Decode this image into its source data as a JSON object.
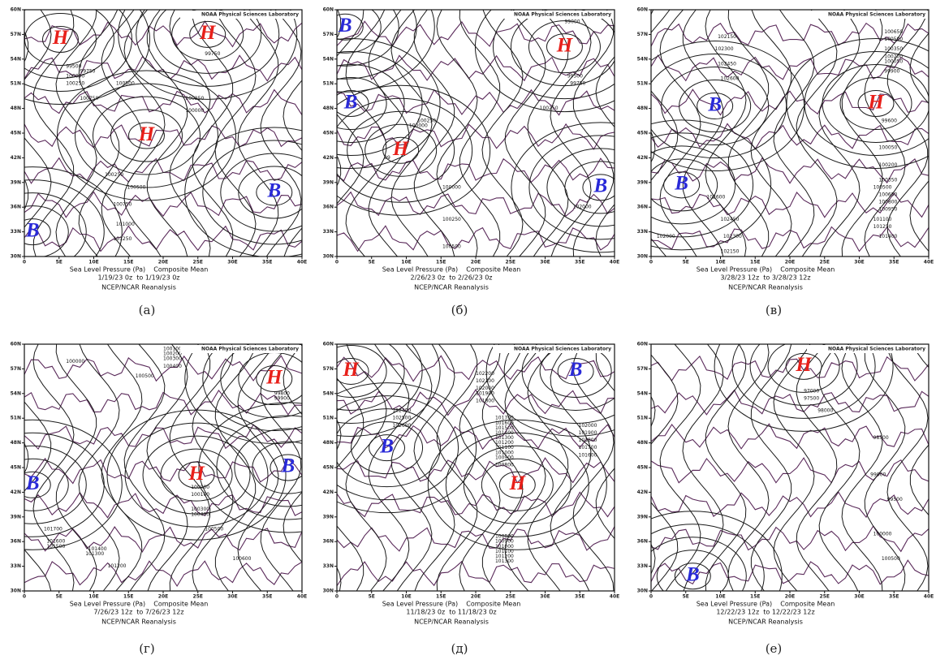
{
  "credit": "NOAA Physical Sciences Laboratory",
  "subtitle": "Sea Level Pressure (Pa)    Composite Mean",
  "source": "NCEP/NCAR Reanalysis",
  "lat_ticks": [
    "60N",
    "57N",
    "54N",
    "51N",
    "48N",
    "45N",
    "42N",
    "39N",
    "36N",
    "33N",
    "30N"
  ],
  "lon_ticks": [
    "0",
    "5E",
    "10E",
    "15E",
    "20E",
    "25E",
    "30E",
    "35E",
    "40E"
  ],
  "marker_colors": {
    "H": "#e8201a",
    "B": "#2a2ad8"
  },
  "panels": [
    {
      "caption": "(а)",
      "date": "1/19/23 0z  to 1/19/23 0z",
      "markers": [
        "H",
        "H",
        "H",
        "B",
        "B"
      ],
      "isobars": [
        "99500",
        "99750",
        "100000",
        "100250",
        "100750",
        "100500",
        "100250",
        "100000",
        "99750",
        "100250",
        "100500",
        "100750",
        "101000",
        "101250"
      ]
    },
    {
      "caption": "(б)",
      "date": "2/26/23 0z  to 2/26/23 0z",
      "markers": [
        "B",
        "H",
        "B",
        "H",
        "B"
      ],
      "isobars": [
        "99000",
        "99500",
        "99750",
        "100250",
        "100250",
        "100000",
        "99",
        "100000",
        "100250",
        "100500",
        "102000"
      ]
    },
    {
      "caption": "(в)",
      "date": "3/28/23 12z  to 3/28/23 12z",
      "markers": [
        "B",
        "H",
        "B"
      ],
      "isobars": [
        "102150",
        "102300",
        "102450",
        "102600",
        "100650",
        "100500",
        "100350",
        "100200",
        "100050",
        "99900",
        "99600",
        "100050",
        "100200",
        "100350",
        "100500",
        "100650",
        "100800",
        "100950",
        "101100",
        "101250",
        "101400",
        "102600",
        "102000",
        "102450",
        "102300",
        "102150"
      ]
    },
    {
      "caption": "(г)",
      "date": "7/26/23 12z  to 7/26/23 12z",
      "markers": [
        "H",
        "H",
        "B",
        "B"
      ],
      "isobars": [
        "100100",
        "100200",
        "100300",
        "100400",
        "100000",
        "100500",
        "99800",
        "99900",
        "100000",
        "100100",
        "100300",
        "100400",
        "100500",
        "101700",
        "101600",
        "101500",
        "101400",
        "101300",
        "101200",
        "100600"
      ]
    },
    {
      "caption": "(д)",
      "date": "11/18/23 0z  to 11/18/23 0z",
      "markers": [
        "H",
        "B",
        "B",
        "H"
      ],
      "isobars": [
        "102200",
        "102100",
        "102000",
        "101900",
        "101800",
        "102400",
        "102500",
        "102600",
        "101700",
        "101600",
        "101500",
        "101400",
        "101300",
        "101200",
        "101100",
        "101000",
        "100900",
        "100800",
        "102000",
        "101900",
        "101800",
        "101700",
        "101600",
        "100800",
        "100900",
        "101000",
        "101100",
        "101200",
        "101300"
      ]
    },
    {
      "caption": "(е)",
      "date": "12/22/23 12z  to 12/22/23 12z",
      "markers": [
        "H",
        "B"
      ],
      "isobars": [
        "97000",
        "97500",
        "98000",
        "98500",
        "99000",
        "99500",
        "100000",
        "100500"
      ]
    }
  ]
}
